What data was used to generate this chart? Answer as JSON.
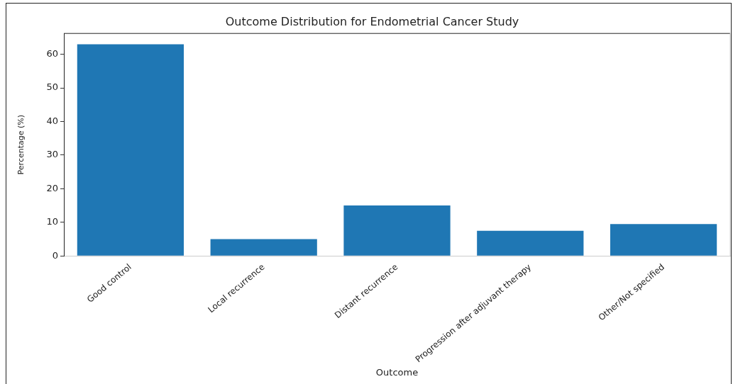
{
  "chart_data": {
    "type": "bar",
    "title": "Outcome Distribution for Endometrial Cancer Study",
    "xlabel": "Outcome",
    "ylabel": "Percentage (%)",
    "categories": [
      "Good control",
      "Local recurrence",
      "Distant recurrence",
      "Progression after adjuvant therapy",
      "Other/Not specified"
    ],
    "values": [
      63,
      5,
      15,
      7.5,
      9.5
    ],
    "color": "#1f77b4",
    "ylim": [
      0,
      66.2
    ],
    "yticks": [
      0,
      10,
      20,
      30,
      40,
      50,
      60
    ],
    "grid": false,
    "legend": false
  }
}
